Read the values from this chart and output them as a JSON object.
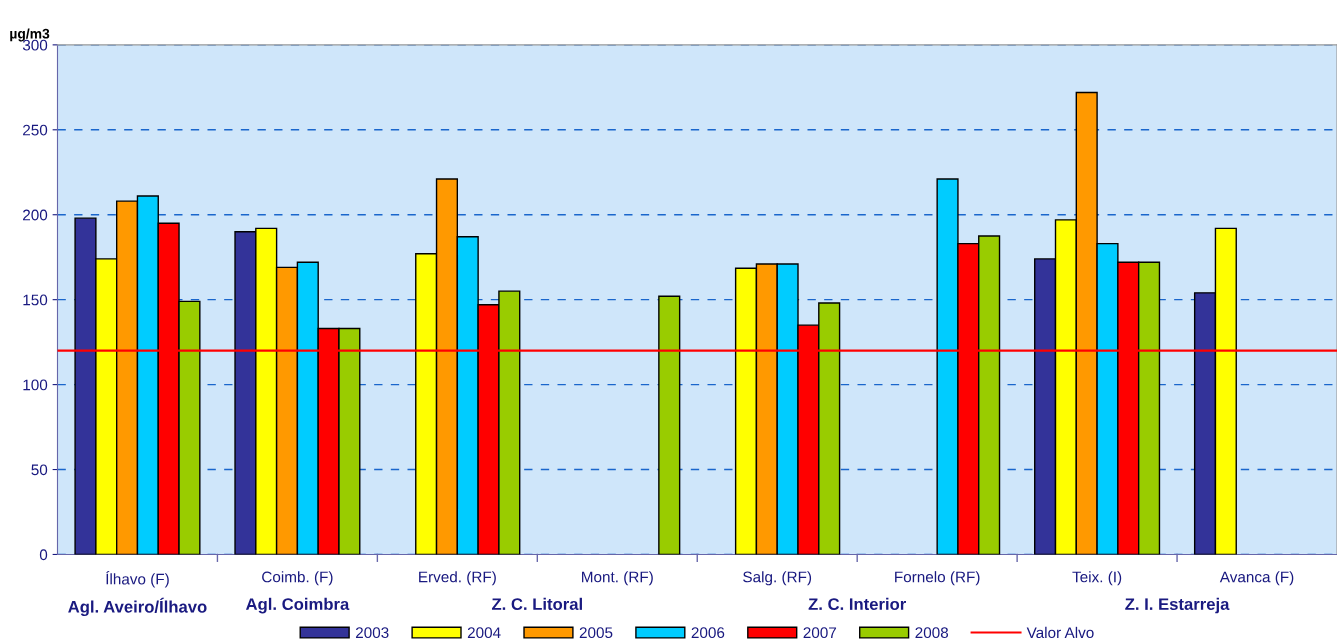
{
  "chart_data": {
    "type": "bar",
    "ylabel": "µg/m3",
    "categories": [
      "Ílhavo (F)",
      "Coimb. (F)",
      "Erved. (RF)",
      "Mont. (RF)",
      "Salg. (RF)",
      "Fornelo (RF)",
      "Teix. (I)",
      "Avanca (F)"
    ],
    "series": [
      {
        "name": "2003",
        "color": "#333399",
        "values": [
          198,
          190,
          null,
          null,
          null,
          null,
          174,
          154
        ]
      },
      {
        "name": "2004",
        "color": "#ffff00",
        "values": [
          174,
          192,
          177,
          null,
          168.5,
          null,
          197,
          192
        ]
      },
      {
        "name": "2005",
        "color": "#ff9900",
        "values": [
          208,
          169,
          221,
          null,
          171,
          null,
          272,
          null
        ]
      },
      {
        "name": "2006",
        "color": "#00ccff",
        "values": [
          211,
          172,
          187,
          null,
          171,
          221,
          183,
          null
        ]
      },
      {
        "name": "2007",
        "color": "#ff0000",
        "values": [
          195,
          133,
          147,
          null,
          135,
          183,
          172,
          null
        ]
      },
      {
        "name": "2008",
        "color": "#99cc00",
        "values": [
          149,
          133,
          155,
          152,
          148,
          187.5,
          172,
          null
        ]
      }
    ],
    "ref_lines": [
      {
        "axis": "y",
        "value": 120,
        "label": "Valor Alvo",
        "color": "#ff0000",
        "line_style": "solid"
      }
    ],
    "annotations": [
      "Agl. Aveiro/Ílhavo",
      "Agl. Coimbra",
      "Z. C. Litoral",
      "Z. C. Interior",
      "Z. I. Estarreja"
    ],
    "ylim": [
      0,
      300
    ],
    "yticks": [
      0,
      50,
      100,
      150,
      200,
      250,
      300
    ],
    "grid": "y",
    "legend": "bottom"
  }
}
